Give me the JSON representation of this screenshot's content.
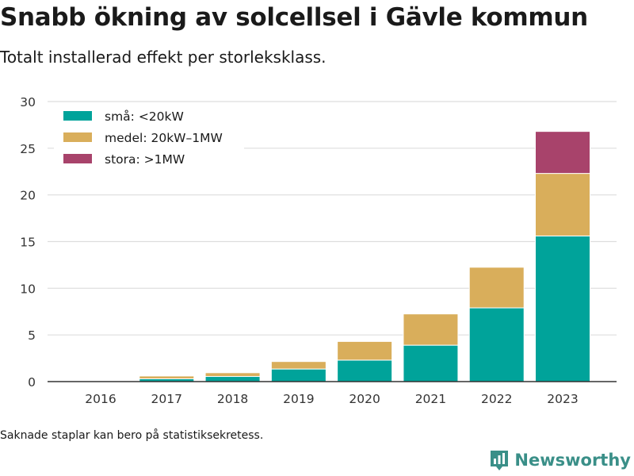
{
  "title": "Snabb ökning av solcellsel i Gävle kommun",
  "subtitle": "Totalt installerad effekt per storleksklass.",
  "footnote": "Saknade staplar kan bero på statistiksekretess.",
  "brand": "Newsworthy",
  "icons": {
    "brand_logo": "bar-chart-logo-icon"
  },
  "colors": {
    "sma": "#00a39a",
    "medel": "#d9ae5b",
    "stora": "#a8436b",
    "brand": "#3a8f88"
  },
  "chart_data": {
    "type": "bar",
    "stacked": true,
    "categories": [
      "2016",
      "2017",
      "2018",
      "2019",
      "2020",
      "2021",
      "2022",
      "2023"
    ],
    "series": [
      {
        "name": "små: <20kW",
        "values": [
          0.05,
          0.3,
          0.55,
          1.35,
          2.3,
          3.9,
          7.9,
          15.6
        ]
      },
      {
        "name": "medel: 20kW–1MW",
        "values": [
          0.02,
          0.3,
          0.4,
          0.8,
          2.0,
          3.35,
          4.35,
          6.7
        ]
      },
      {
        "name": "stora: >1MW",
        "values": [
          0,
          0,
          0,
          0,
          0,
          0,
          0,
          4.5
        ]
      }
    ],
    "ylim": [
      0,
      30
    ],
    "yticks": [
      0,
      5,
      10,
      15,
      20,
      25,
      30
    ],
    "grid": true,
    "legend": "top-left"
  }
}
